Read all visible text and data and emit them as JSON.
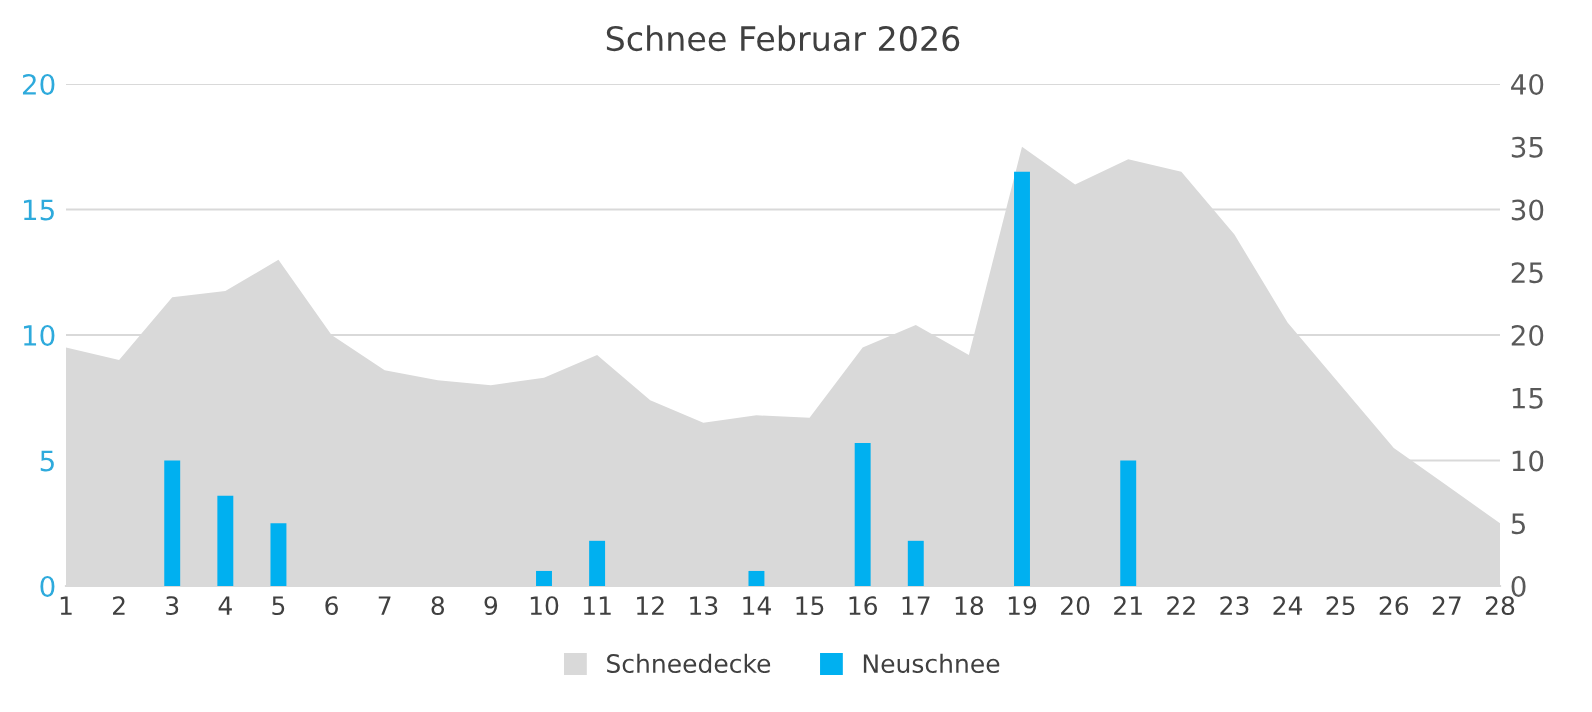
{
  "chart_data": {
    "type": "bar",
    "title": "Schnee Februar 2026",
    "categories": [
      "1",
      "2",
      "3",
      "4",
      "5",
      "6",
      "7",
      "8",
      "9",
      "10",
      "11",
      "12",
      "13",
      "14",
      "15",
      "16",
      "17",
      "18",
      "19",
      "20",
      "21",
      "22",
      "23",
      "24",
      "25",
      "26",
      "27",
      "28"
    ],
    "series": [
      {
        "name": "Schneedecke",
        "type": "area",
        "axis": "y2",
        "color": "#d9d9d9",
        "values": [
          19,
          18,
          23,
          23.5,
          26,
          20,
          17.2,
          16.4,
          16,
          16.6,
          18.4,
          14.8,
          13,
          13.6,
          13.4,
          19,
          20.8,
          18.4,
          35,
          32,
          34,
          33,
          28,
          21,
          16,
          11,
          8,
          5
        ]
      },
      {
        "name": "Neuschnee",
        "color": "#00b0f0",
        "values": [
          0,
          0,
          5,
          3.6,
          2.5,
          0,
          0,
          0,
          0,
          0.6,
          1.8,
          0,
          0,
          0.6,
          0,
          5.7,
          1.8,
          0,
          16.5,
          0,
          5,
          0,
          0,
          0,
          0,
          0,
          0,
          0
        ]
      }
    ],
    "ylim": [
      0,
      20
    ],
    "yticks": [
      0,
      5,
      10,
      15,
      20
    ],
    "y2lim": [
      0,
      40
    ],
    "y2ticks": [
      0,
      5,
      10,
      15,
      20,
      25,
      30,
      35,
      40
    ],
    "grid": "y",
    "legend": "bottom"
  }
}
